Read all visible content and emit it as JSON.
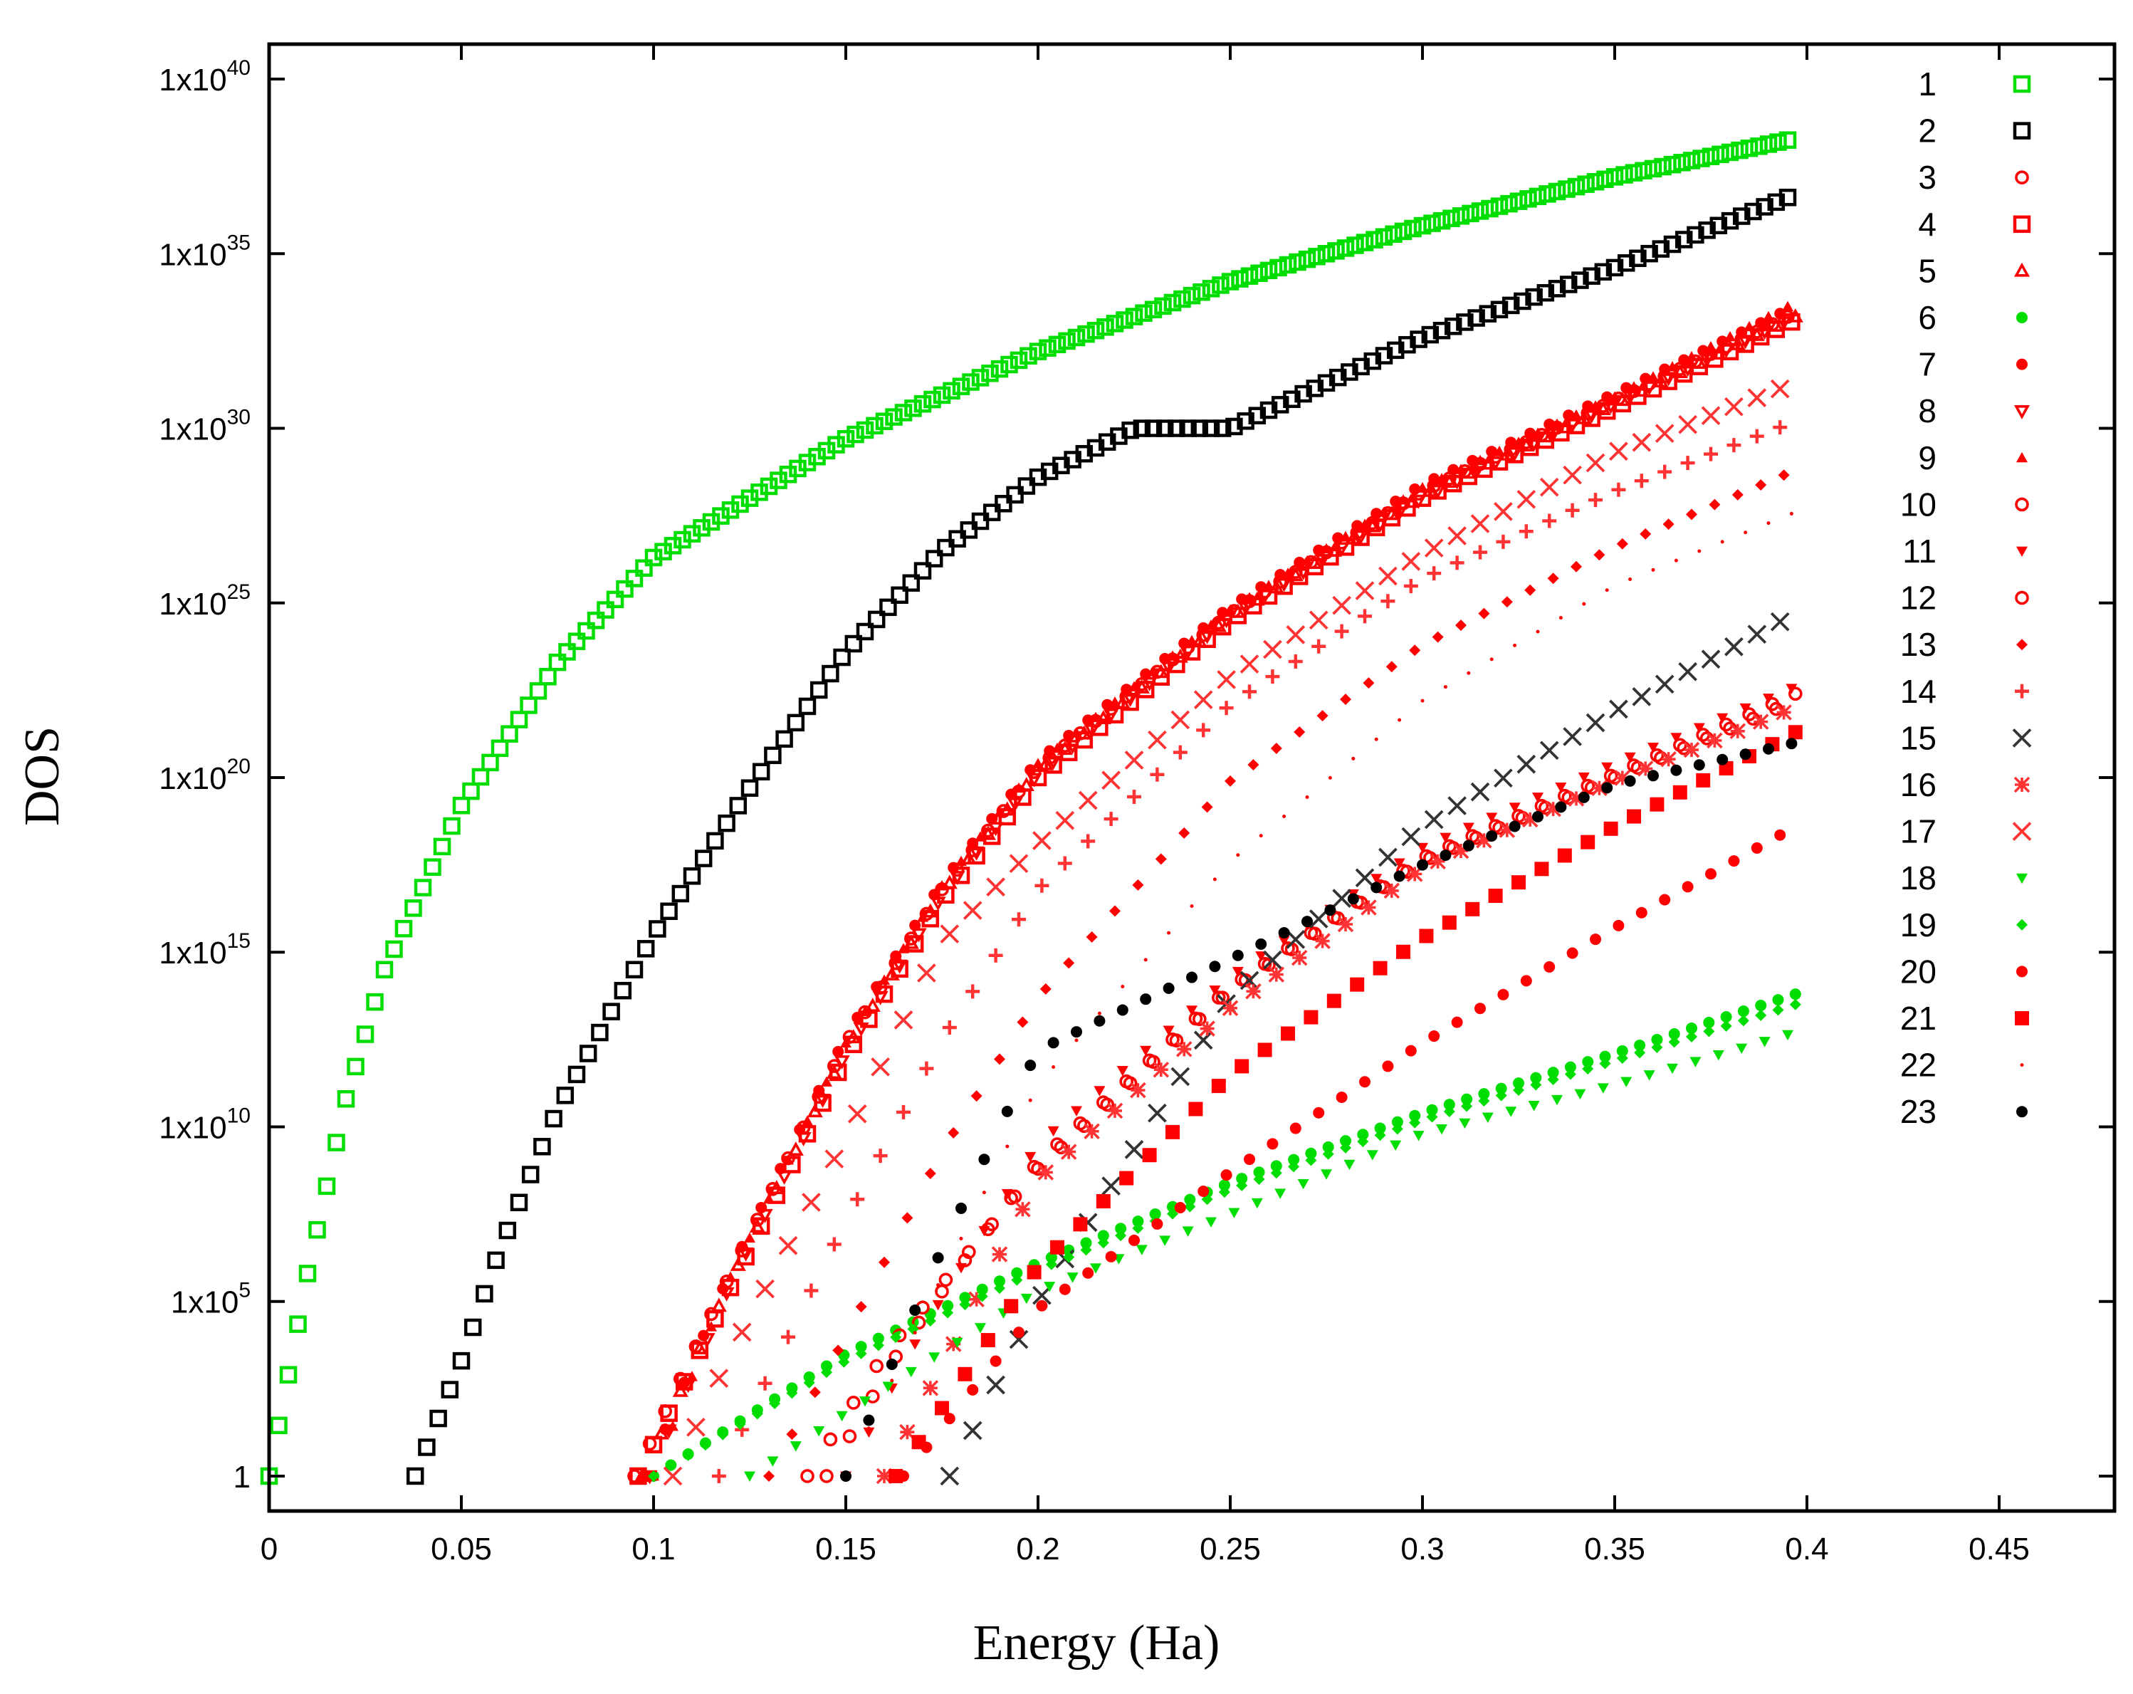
{
  "chart_data": {
    "type": "scatter",
    "title": "",
    "xlabel": "Energy (Ha)",
    "ylabel": "DOS",
    "y_scale": "log10",
    "xlim": [
      0,
      0.48
    ],
    "ylim_log10": [
      -1,
      41
    ],
    "x_ticks": [
      0,
      0.05,
      0.1,
      0.15,
      0.2,
      0.25,
      0.3,
      0.35,
      0.4,
      0.45
    ],
    "x_tick_labels": [
      "0",
      "0.05",
      "0.1",
      "0.15",
      "0.2",
      "0.25",
      "0.3",
      "0.35",
      "0.4",
      "0.45"
    ],
    "y_ticks_log10": [
      0,
      5,
      10,
      15,
      20,
      25,
      30,
      35,
      40
    ],
    "y_tick_labels": [
      {
        "base": "1",
        "exp": ""
      },
      {
        "base": "1x10",
        "exp": "5"
      },
      {
        "base": "1x10",
        "exp": "10"
      },
      {
        "base": "1x10",
        "exp": "15"
      },
      {
        "base": "1x10",
        "exp": "20"
      },
      {
        "base": "1x10",
        "exp": "25"
      },
      {
        "base": "1x10",
        "exp": "30"
      },
      {
        "base": "1x10",
        "exp": "35"
      },
      {
        "base": "1x10",
        "exp": "40"
      }
    ],
    "legend_position": "top-right",
    "x_end": 0.397,
    "series": [
      {
        "name": "1",
        "color": "#00dd00",
        "marker": "square-open",
        "x_start": 0.0,
        "step": 0.0025,
        "anchors": [
          [
            0.0,
            0
          ],
          [
            0.01,
            5.8
          ],
          [
            0.02,
            10.8
          ],
          [
            0.03,
            14.5
          ],
          [
            0.05,
            19.2
          ],
          [
            0.075,
            23.3
          ],
          [
            0.1,
            26.3
          ],
          [
            0.15,
            29.7
          ],
          [
            0.2,
            32.2
          ],
          [
            0.25,
            34.2
          ],
          [
            0.3,
            35.8
          ],
          [
            0.35,
            37.2
          ],
          [
            0.397,
            38.3
          ]
        ]
      },
      {
        "name": "2",
        "color": "#000000",
        "marker": "square-open",
        "x_start": 0.038,
        "step": 0.003,
        "anchors": [
          [
            0.038,
            0
          ],
          [
            0.05,
            3.3
          ],
          [
            0.06,
            6.5
          ],
          [
            0.075,
            10.5
          ],
          [
            0.1,
            15.5
          ],
          [
            0.125,
            19.7
          ],
          [
            0.15,
            23.6
          ],
          [
            0.175,
            26.5
          ],
          [
            0.2,
            28.6
          ],
          [
            0.225,
            30.0
          ],
          [
            0.25,
            30.0
          ],
          [
            0.275,
            31.3
          ],
          [
            0.3,
            32.6
          ],
          [
            0.35,
            34.6
          ],
          [
            0.397,
            36.7
          ]
        ]
      },
      {
        "name": "3",
        "color": "#ff0000",
        "marker": "circle-open",
        "x_start": 0.095,
        "step": 0.004,
        "anchors": [
          [
            0.095,
            0
          ],
          [
            0.12,
            5.8
          ],
          [
            0.15,
            12.4
          ],
          [
            0.175,
            16.8
          ],
          [
            0.2,
            20.3
          ],
          [
            0.25,
            24.7
          ],
          [
            0.3,
            28.2
          ],
          [
            0.35,
            30.8
          ],
          [
            0.397,
            33.3
          ]
        ]
      },
      {
        "name": "4",
        "color": "#ff0000",
        "marker": "square-open",
        "x_start": 0.096,
        "step": 0.004,
        "anchors": [
          [
            0.096,
            0
          ],
          [
            0.12,
            5.4
          ],
          [
            0.15,
            12.0
          ],
          [
            0.175,
            16.5
          ],
          [
            0.2,
            20.0
          ],
          [
            0.25,
            24.5
          ],
          [
            0.3,
            28.0
          ],
          [
            0.35,
            30.6
          ],
          [
            0.397,
            33.1
          ]
        ]
      },
      {
        "name": "5",
        "color": "#ff0000",
        "marker": "triangle-up-open",
        "x_start": 0.097,
        "step": 0.005,
        "anchors": [
          [
            0.097,
            0
          ],
          [
            0.12,
            5.6
          ],
          [
            0.15,
            12.2
          ],
          [
            0.175,
            16.7
          ],
          [
            0.2,
            20.2
          ],
          [
            0.25,
            24.6
          ],
          [
            0.3,
            28.1
          ],
          [
            0.35,
            30.7
          ],
          [
            0.397,
            33.2
          ]
        ]
      },
      {
        "name": "6",
        "color": "#00dd00",
        "marker": "circle-filled",
        "x_start": 0.1,
        "step": 0.0045,
        "anchors": [
          [
            0.1,
            0
          ],
          [
            0.15,
            3.5
          ],
          [
            0.2,
            6.1
          ],
          [
            0.25,
            8.4
          ],
          [
            0.3,
            10.4
          ],
          [
            0.35,
            12.1
          ],
          [
            0.397,
            13.8
          ]
        ]
      },
      {
        "name": "7",
        "color": "#ff0000",
        "marker": "circle-filled",
        "x_start": 0.098,
        "step": 0.005,
        "anchors": [
          [
            0.098,
            0
          ],
          [
            0.12,
            5.9
          ],
          [
            0.15,
            12.6
          ],
          [
            0.175,
            17.0
          ],
          [
            0.2,
            20.5
          ],
          [
            0.25,
            24.9
          ],
          [
            0.3,
            28.4
          ],
          [
            0.35,
            31.0
          ],
          [
            0.397,
            33.5
          ]
        ]
      },
      {
        "name": "8",
        "color": "#ff0000",
        "marker": "triangle-down-open",
        "x_start": 0.099,
        "step": 0.005,
        "anchors": [
          [
            0.099,
            0
          ],
          [
            0.12,
            5.5
          ],
          [
            0.15,
            12.1
          ],
          [
            0.175,
            16.6
          ],
          [
            0.2,
            20.1
          ],
          [
            0.25,
            24.6
          ],
          [
            0.3,
            28.0
          ],
          [
            0.35,
            30.7
          ],
          [
            0.397,
            33.2
          ]
        ]
      },
      {
        "name": "9",
        "color": "#ff0000",
        "marker": "triangle-up-filled",
        "x_start": 0.1,
        "step": 0.005,
        "anchors": [
          [
            0.1,
            0
          ],
          [
            0.12,
            5.7
          ],
          [
            0.15,
            12.4
          ],
          [
            0.175,
            16.9
          ],
          [
            0.2,
            20.4
          ],
          [
            0.25,
            24.8
          ],
          [
            0.3,
            28.3
          ],
          [
            0.35,
            30.9
          ],
          [
            0.397,
            33.6
          ]
        ]
      },
      {
        "name": "10",
        "color": "#ff0000",
        "marker": "circle-open",
        "x_start": 0.14,
        "step": 0.006,
        "anchors": [
          [
            0.14,
            0
          ],
          [
            0.16,
            3.5
          ],
          [
            0.2,
            8.8
          ],
          [
            0.25,
            13.9
          ],
          [
            0.3,
            17.6
          ],
          [
            0.35,
            20.0
          ],
          [
            0.397,
            22.2
          ]
        ]
      },
      {
        "name": "11",
        "color": "#ff0000",
        "marker": "triangle-down-filled",
        "x_start": 0.15,
        "step": 0.006,
        "anchors": [
          [
            0.15,
            0
          ],
          [
            0.17,
            4.2
          ],
          [
            0.2,
            9.5
          ],
          [
            0.25,
            14.3
          ],
          [
            0.3,
            18.0
          ],
          [
            0.35,
            20.4
          ],
          [
            0.397,
            22.6
          ]
        ]
      },
      {
        "name": "12",
        "color": "#ff0000",
        "marker": "circle-open",
        "x_start": 0.145,
        "step": 0.006,
        "anchors": [
          [
            0.145,
            0
          ],
          [
            0.165,
            3.8
          ],
          [
            0.2,
            9.0
          ],
          [
            0.25,
            14.0
          ],
          [
            0.3,
            17.7
          ],
          [
            0.35,
            20.1
          ],
          [
            0.397,
            22.4
          ]
        ]
      },
      {
        "name": "13",
        "color": "#ff0000",
        "marker": "diamond-filled",
        "x_start": 0.13,
        "step": 0.006,
        "anchors": [
          [
            0.13,
            0
          ],
          [
            0.15,
            4.0
          ],
          [
            0.175,
            9.3
          ],
          [
            0.2,
            13.7
          ],
          [
            0.25,
            19.9
          ],
          [
            0.3,
            23.8
          ],
          [
            0.35,
            26.6
          ],
          [
            0.397,
            28.8
          ]
        ]
      },
      {
        "name": "14",
        "color": "#ff3333",
        "marker": "plus",
        "x_start": 0.117,
        "step": 0.006,
        "anchors": [
          [
            0.117,
            0
          ],
          [
            0.15,
            7.3
          ],
          [
            0.175,
            12.5
          ],
          [
            0.2,
            16.8
          ],
          [
            0.25,
            22.1
          ],
          [
            0.3,
            25.7
          ],
          [
            0.35,
            28.2
          ],
          [
            0.397,
            30.2
          ]
        ]
      },
      {
        "name": "15",
        "color": "#333333",
        "marker": "x",
        "x_start": 0.177,
        "step": 0.006,
        "anchors": [
          [
            0.177,
            0
          ],
          [
            0.2,
            5.0
          ],
          [
            0.25,
            13.7
          ],
          [
            0.3,
            18.6
          ],
          [
            0.35,
            21.9
          ],
          [
            0.397,
            24.7
          ]
        ]
      },
      {
        "name": "16",
        "color": "#ff3333",
        "marker": "asterisk",
        "x_start": 0.16,
        "step": 0.006,
        "anchors": [
          [
            0.16,
            0
          ],
          [
            0.18,
            4.2
          ],
          [
            0.2,
            8.5
          ],
          [
            0.25,
            13.4
          ],
          [
            0.3,
            17.4
          ],
          [
            0.35,
            19.9
          ],
          [
            0.397,
            22.0
          ]
        ]
      },
      {
        "name": "17",
        "color": "#ff3333",
        "marker": "x",
        "x_start": 0.105,
        "step": 0.006,
        "anchors": [
          [
            0.105,
            0
          ],
          [
            0.12,
            3.5
          ],
          [
            0.15,
            9.7
          ],
          [
            0.175,
            15.3
          ],
          [
            0.2,
            18.1
          ],
          [
            0.25,
            22.9
          ],
          [
            0.3,
            26.4
          ],
          [
            0.35,
            29.3
          ],
          [
            0.397,
            31.3
          ]
        ]
      },
      {
        "name": "18",
        "color": "#00dd00",
        "marker": "triangle-down-filled",
        "x_start": 0.125,
        "step": 0.006,
        "anchors": [
          [
            0.125,
            0
          ],
          [
            0.15,
            1.8
          ],
          [
            0.2,
            5.3
          ],
          [
            0.25,
            7.5
          ],
          [
            0.3,
            9.8
          ],
          [
            0.35,
            11.2
          ],
          [
            0.397,
            12.7
          ]
        ]
      },
      {
        "name": "19",
        "color": "#00dd00",
        "marker": "diamond-filled",
        "x_start": 0.1,
        "step": 0.0045,
        "anchors": [
          [
            0.1,
            0
          ],
          [
            0.15,
            3.3
          ],
          [
            0.2,
            5.9
          ],
          [
            0.25,
            8.2
          ],
          [
            0.3,
            10.2
          ],
          [
            0.35,
            11.9
          ],
          [
            0.397,
            13.5
          ]
        ]
      },
      {
        "name": "20",
        "color": "#ff0000",
        "marker": "circle-filled",
        "x_start": 0.165,
        "step": 0.006,
        "anchors": [
          [
            0.165,
            0
          ],
          [
            0.2,
            4.8
          ],
          [
            0.25,
            8.7
          ],
          [
            0.3,
            12.4
          ],
          [
            0.35,
            15.7
          ],
          [
            0.397,
            18.6
          ]
        ]
      },
      {
        "name": "21",
        "color": "#ff0000",
        "marker": "square-filled",
        "x_start": 0.163,
        "step": 0.006,
        "anchors": [
          [
            0.163,
            0
          ],
          [
            0.2,
            6.0
          ],
          [
            0.25,
            11.5
          ],
          [
            0.3,
            15.4
          ],
          [
            0.35,
            18.6
          ],
          [
            0.397,
            21.3
          ]
        ]
      },
      {
        "name": "22",
        "color": "#ff0000",
        "marker": "dot",
        "x_start": 0.15,
        "step": 0.006,
        "anchors": [
          [
            0.15,
            0
          ],
          [
            0.175,
            5.7
          ],
          [
            0.2,
            11.2
          ],
          [
            0.25,
            17.6
          ],
          [
            0.3,
            22.2
          ],
          [
            0.35,
            25.5
          ],
          [
            0.397,
            27.6
          ]
        ]
      },
      {
        "name": "23",
        "color": "#000000",
        "marker": "circle-filled",
        "x_start": 0.15,
        "step": 0.006,
        "anchors": [
          [
            0.15,
            0
          ],
          [
            0.165,
            4.0
          ],
          [
            0.175,
            6.5
          ],
          [
            0.19,
            10.0
          ],
          [
            0.2,
            12.2
          ],
          [
            0.25,
            14.8
          ],
          [
            0.3,
            17.5
          ],
          [
            0.35,
            19.8
          ],
          [
            0.397,
            21.0
          ]
        ]
      }
    ]
  }
}
